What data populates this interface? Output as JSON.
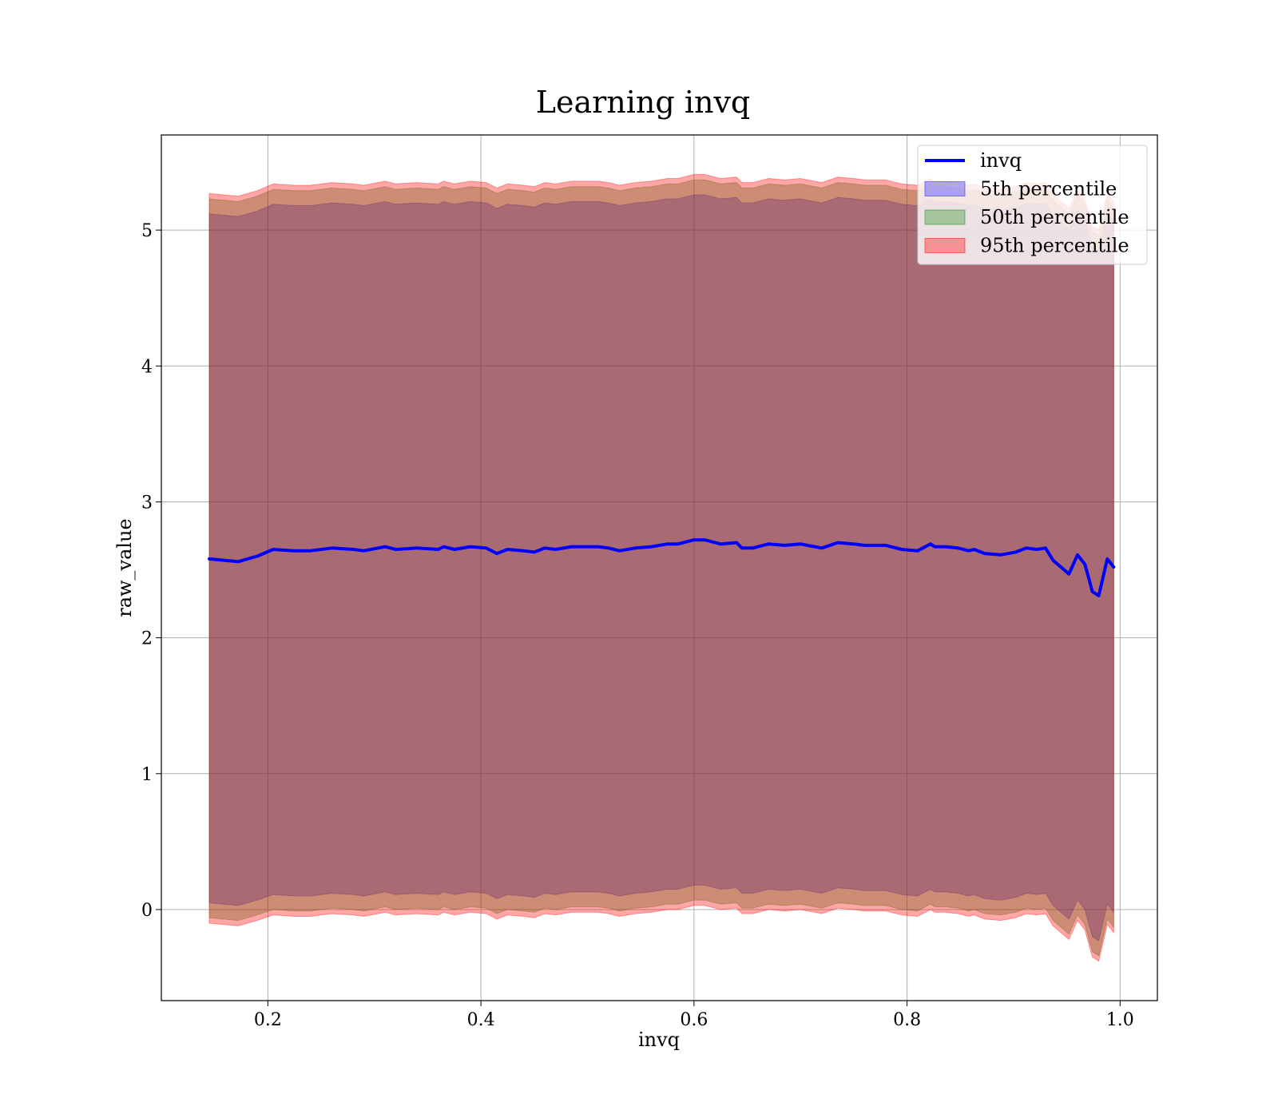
{
  "chart_data": {
    "type": "line",
    "title": "Learning invq",
    "xlabel": "invq",
    "ylabel": "raw_value",
    "xlim": [
      0.1,
      1.035
    ],
    "ylim": [
      -0.67,
      5.7
    ],
    "xticks": [
      0.2,
      0.4,
      0.6,
      0.8,
      1.0
    ],
    "xtick_labels": [
      "0.2",
      "0.4",
      "0.6",
      "0.8",
      "1.0"
    ],
    "yticks": [
      0,
      1,
      2,
      3,
      4,
      5
    ],
    "ytick_labels": [
      "0",
      "1",
      "2",
      "3",
      "4",
      "5"
    ],
    "grid": true,
    "legend_position": "top-right",
    "x": [
      0.145,
      0.172,
      0.19,
      0.205,
      0.225,
      0.24,
      0.26,
      0.28,
      0.29,
      0.31,
      0.32,
      0.34,
      0.36,
      0.365,
      0.375,
      0.39,
      0.405,
      0.415,
      0.425,
      0.44,
      0.45,
      0.46,
      0.47,
      0.485,
      0.5,
      0.51,
      0.52,
      0.53,
      0.545,
      0.56,
      0.575,
      0.585,
      0.6,
      0.61,
      0.625,
      0.64,
      0.645,
      0.655,
      0.67,
      0.685,
      0.7,
      0.72,
      0.735,
      0.75,
      0.76,
      0.78,
      0.795,
      0.81,
      0.822,
      0.826,
      0.836,
      0.848,
      0.858,
      0.863,
      0.873,
      0.888,
      0.902,
      0.912,
      0.922,
      0.93,
      0.937,
      0.952,
      0.96,
      0.967,
      0.974,
      0.98,
      0.988,
      0.994
    ],
    "series": [
      {
        "name": "invq",
        "color": "#0000ff",
        "values": [
          2.58,
          2.56,
          2.6,
          2.65,
          2.64,
          2.64,
          2.66,
          2.65,
          2.64,
          2.67,
          2.65,
          2.66,
          2.65,
          2.67,
          2.65,
          2.67,
          2.66,
          2.62,
          2.65,
          2.64,
          2.63,
          2.66,
          2.65,
          2.67,
          2.67,
          2.67,
          2.66,
          2.64,
          2.66,
          2.67,
          2.69,
          2.69,
          2.72,
          2.72,
          2.69,
          2.7,
          2.66,
          2.66,
          2.69,
          2.68,
          2.69,
          2.66,
          2.7,
          2.69,
          2.68,
          2.68,
          2.65,
          2.64,
          2.69,
          2.67,
          2.67,
          2.66,
          2.64,
          2.65,
          2.62,
          2.61,
          2.63,
          2.66,
          2.65,
          2.66,
          2.57,
          2.47,
          2.61,
          2.54,
          2.34,
          2.31,
          2.58,
          2.52
        ]
      }
    ],
    "bands": [
      {
        "name": "5th percentile",
        "color": "#0000ff",
        "alpha": 0.3,
        "lower": [
          0.05,
          0.03,
          0.07,
          0.11,
          0.1,
          0.1,
          0.12,
          0.11,
          0.1,
          0.13,
          0.11,
          0.12,
          0.11,
          0.13,
          0.11,
          0.13,
          0.12,
          0.08,
          0.11,
          0.1,
          0.09,
          0.12,
          0.11,
          0.13,
          0.13,
          0.13,
          0.12,
          0.1,
          0.12,
          0.13,
          0.15,
          0.15,
          0.18,
          0.18,
          0.15,
          0.16,
          0.12,
          0.12,
          0.15,
          0.14,
          0.15,
          0.12,
          0.16,
          0.15,
          0.14,
          0.14,
          0.11,
          0.1,
          0.15,
          0.13,
          0.13,
          0.12,
          0.1,
          0.11,
          0.08,
          0.07,
          0.09,
          0.12,
          0.11,
          0.12,
          0.03,
          -0.07,
          0.07,
          0.0,
          -0.2,
          -0.23,
          0.04,
          -0.02
        ],
        "upper": [
          5.12,
          5.1,
          5.14,
          5.19,
          5.18,
          5.18,
          5.2,
          5.19,
          5.18,
          5.21,
          5.19,
          5.2,
          5.19,
          5.21,
          5.19,
          5.21,
          5.2,
          5.16,
          5.19,
          5.18,
          5.17,
          5.2,
          5.19,
          5.21,
          5.21,
          5.21,
          5.2,
          5.18,
          5.2,
          5.21,
          5.23,
          5.23,
          5.26,
          5.26,
          5.23,
          5.24,
          5.2,
          5.2,
          5.23,
          5.22,
          5.23,
          5.2,
          5.24,
          5.23,
          5.22,
          5.22,
          5.19,
          5.18,
          5.23,
          5.21,
          5.21,
          5.2,
          5.18,
          5.19,
          5.16,
          5.15,
          5.17,
          5.2,
          5.19,
          5.2,
          5.11,
          5.01,
          5.15,
          5.08,
          4.88,
          4.85,
          5.12,
          5.06
        ]
      },
      {
        "name": "50th percentile",
        "color": "#008000",
        "alpha": 0.3,
        "lower": [
          -0.06,
          -0.08,
          -0.04,
          0.0,
          -0.01,
          -0.01,
          0.01,
          0.0,
          -0.01,
          0.02,
          0.0,
          0.01,
          0.0,
          0.02,
          0.0,
          0.02,
          0.01,
          -0.03,
          0.0,
          -0.01,
          -0.02,
          0.01,
          0.0,
          0.02,
          0.02,
          0.02,
          0.01,
          -0.01,
          0.01,
          0.02,
          0.04,
          0.04,
          0.07,
          0.07,
          0.04,
          0.05,
          0.01,
          0.01,
          0.04,
          0.03,
          0.04,
          0.01,
          0.05,
          0.04,
          0.03,
          0.03,
          0.0,
          -0.01,
          0.04,
          0.02,
          0.02,
          0.01,
          -0.01,
          0.0,
          -0.03,
          -0.04,
          -0.02,
          0.01,
          0.0,
          0.01,
          -0.08,
          -0.18,
          -0.04,
          -0.11,
          -0.31,
          -0.34,
          -0.07,
          -0.13
        ],
        "upper": [
          5.23,
          5.21,
          5.25,
          5.3,
          5.29,
          5.29,
          5.31,
          5.3,
          5.29,
          5.32,
          5.3,
          5.31,
          5.3,
          5.32,
          5.3,
          5.32,
          5.31,
          5.27,
          5.3,
          5.29,
          5.28,
          5.31,
          5.3,
          5.32,
          5.32,
          5.32,
          5.31,
          5.29,
          5.31,
          5.32,
          5.34,
          5.34,
          5.37,
          5.37,
          5.34,
          5.35,
          5.31,
          5.31,
          5.34,
          5.33,
          5.34,
          5.31,
          5.35,
          5.34,
          5.33,
          5.33,
          5.3,
          5.29,
          5.34,
          5.32,
          5.32,
          5.31,
          5.29,
          5.3,
          5.27,
          5.26,
          5.28,
          5.31,
          5.3,
          5.31,
          5.22,
          5.12,
          5.26,
          5.19,
          4.99,
          4.96,
          5.23,
          5.17
        ]
      },
      {
        "name": "95th percentile",
        "color": "#ff0000",
        "alpha": 0.35,
        "lower": [
          -0.1,
          -0.12,
          -0.08,
          -0.04,
          -0.05,
          -0.05,
          -0.03,
          -0.04,
          -0.05,
          -0.02,
          -0.04,
          -0.03,
          -0.04,
          -0.02,
          -0.04,
          -0.02,
          -0.03,
          -0.07,
          -0.04,
          -0.05,
          -0.06,
          -0.03,
          -0.04,
          -0.02,
          -0.02,
          -0.02,
          -0.03,
          -0.05,
          -0.03,
          -0.02,
          0.0,
          0.0,
          0.03,
          0.03,
          0.0,
          0.01,
          -0.03,
          -0.03,
          0.0,
          -0.01,
          0.0,
          -0.03,
          0.01,
          0.0,
          -0.01,
          -0.01,
          -0.04,
          -0.05,
          0.0,
          -0.02,
          -0.02,
          -0.03,
          -0.05,
          -0.04,
          -0.07,
          -0.08,
          -0.06,
          -0.03,
          -0.04,
          -0.03,
          -0.12,
          -0.22,
          -0.08,
          -0.15,
          -0.35,
          -0.38,
          -0.11,
          -0.17
        ],
        "upper": [
          5.27,
          5.25,
          5.29,
          5.34,
          5.33,
          5.33,
          5.35,
          5.34,
          5.33,
          5.36,
          5.34,
          5.35,
          5.34,
          5.36,
          5.34,
          5.36,
          5.35,
          5.31,
          5.34,
          5.33,
          5.32,
          5.35,
          5.34,
          5.36,
          5.36,
          5.36,
          5.35,
          5.33,
          5.35,
          5.36,
          5.38,
          5.38,
          5.41,
          5.41,
          5.38,
          5.39,
          5.35,
          5.35,
          5.38,
          5.37,
          5.38,
          5.35,
          5.39,
          5.38,
          5.37,
          5.37,
          5.34,
          5.33,
          5.38,
          5.36,
          5.36,
          5.35,
          5.33,
          5.34,
          5.31,
          5.3,
          5.32,
          5.35,
          5.34,
          5.35,
          5.26,
          5.16,
          5.3,
          5.23,
          5.03,
          5.0,
          5.27,
          5.21
        ]
      }
    ],
    "legend": [
      {
        "label": "invq",
        "kind": "line",
        "color": "#0000ff"
      },
      {
        "label": "5th percentile",
        "kind": "patch",
        "color": "#0000ff",
        "alpha": 0.3
      },
      {
        "label": "50th percentile",
        "kind": "patch",
        "color": "#008000",
        "alpha": 0.3
      },
      {
        "label": "95th percentile",
        "kind": "patch",
        "color": "#ff0000",
        "alpha": 0.35
      }
    ]
  }
}
